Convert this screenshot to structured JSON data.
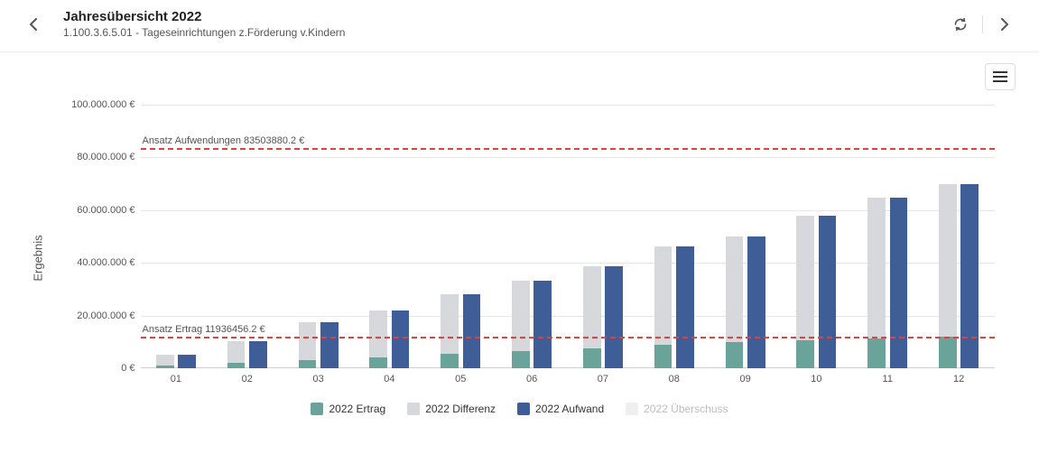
{
  "header": {
    "title": "Jahresübersicht 2022",
    "subtitle": "1.100.3.6.5.01 - Tageseinrichtungen z.Förderung v.Kindern"
  },
  "chart": {
    "type": "grouped-bar",
    "ylabel": "Ergebnis",
    "ylim": [
      0,
      100000000
    ],
    "ytick_step": 20000000,
    "ytick_labels": [
      "0 €",
      "20.000.000 €",
      "40.000.000 €",
      "60.000.000 €",
      "80.000.000 €",
      "100.000.000 €"
    ],
    "categories": [
      "01",
      "02",
      "03",
      "04",
      "05",
      "06",
      "07",
      "08",
      "09",
      "10",
      "11",
      "12"
    ],
    "group_width_ratio": 0.56,
    "bar_gap_ratio": 0.06,
    "background_color": "#ffffff",
    "grid_color": "#e6e6e6",
    "axis_color": "#cfcfcf",
    "series": [
      {
        "key": "ertrag",
        "label": "2022 Ertrag",
        "color": "#6aa39a",
        "group": "left",
        "stack_order": 1,
        "values": [
          1000000,
          2100000,
          3100000,
          4200000,
          5500000,
          6400000,
          7600000,
          9000000,
          9800000,
          10600000,
          11300000,
          11936456
        ]
      },
      {
        "key": "differenz",
        "label": "2022 Differenz",
        "color": "#d6d8db",
        "group": "left",
        "stack_order": 2,
        "values": [
          4100000,
          8200000,
          14400000,
          17700000,
          22600000,
          26800000,
          31100000,
          37200000,
          40200000,
          47300000,
          53300000,
          58100000
        ]
      },
      {
        "key": "aufwand",
        "label": "2022 Aufwand",
        "color": "#3f5e97",
        "group": "right",
        "stack_order": 1,
        "values": [
          5100000,
          10300000,
          17500000,
          21900000,
          28100000,
          33200000,
          38700000,
          46200000,
          50000000,
          57900000,
          64600000,
          70000000
        ]
      },
      {
        "key": "ueberschuss",
        "label": "2022 Überschuss",
        "color": "#eeeff1",
        "group": "right",
        "stack_order": 2,
        "values": [
          0,
          0,
          0,
          0,
          0,
          0,
          0,
          0,
          0,
          0,
          0,
          0
        ]
      }
    ],
    "reference_lines": [
      {
        "label": "Ansatz Aufwendungen 83503880.2 €",
        "value": 83503880.2,
        "color": "#e0433f"
      },
      {
        "label": "Ansatz Ertrag 11936456.2 €",
        "value": 11936456.2,
        "color": "#e0433f"
      }
    ],
    "legend_faded_keys": [
      "ueberschuss"
    ],
    "label_fontsize": 11,
    "title_fontsize": 15
  }
}
